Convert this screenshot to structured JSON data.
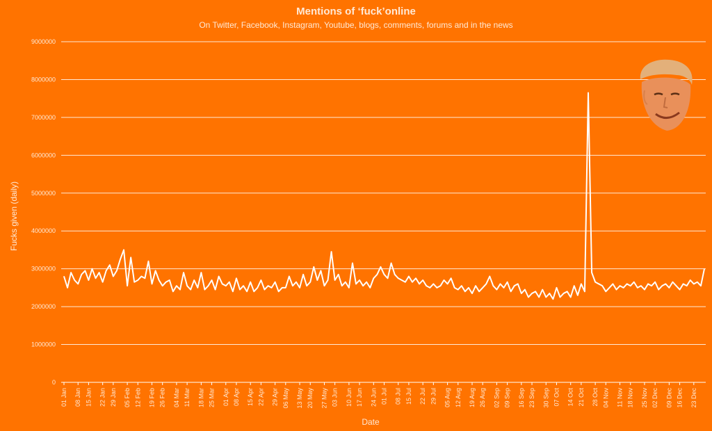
{
  "colors": {
    "background": "#FF7300",
    "line": "#FFFFFF",
    "grid": "#FFFFFF",
    "text": "#FFE9D6"
  },
  "chart_data": {
    "type": "line",
    "title": "Mentions of ‘fuck’online",
    "subtitle": "On Twitter, Facebook, Instagram, Youtube, blogs, comments, forums and in the news",
    "xlabel": "Date",
    "ylabel": "Fucks given (daily)",
    "ylim": [
      0,
      9000000
    ],
    "grid": true,
    "y_ticks": [
      "0",
      "1000000",
      "2000000",
      "3000000",
      "4000000",
      "5000000",
      "6000000",
      "7000000",
      "8000000",
      "9000000"
    ],
    "x_tick_labels": [
      "01 Jan",
      "08 Jan",
      "15 Jan",
      "22 Jan",
      "29 Jan",
      "05 Feb",
      "12 Feb",
      "19 Feb",
      "26 Feb",
      "04 Mar",
      "11 Mar",
      "18 Mar",
      "25 Mar",
      "01 Apr",
      "08 Apr",
      "15 Apr",
      "22 Apr",
      "29 Apr",
      "06 May",
      "13 May",
      "20 May",
      "27 May",
      "03 Jun",
      "10 Jun",
      "17 Jun",
      "24 Jun",
      "01 Jul",
      "08 Jul",
      "15 Jul",
      "22 Jul",
      "29 Jul",
      "05 Aug",
      "12 Aug",
      "19 Aug",
      "26 Aug",
      "02 Sep",
      "09 Sep",
      "16 Sep",
      "23 Sep",
      "30 Sep",
      "07 Oct",
      "14 Oct",
      "21 Oct",
      "28 Oct",
      "04 Nov",
      "11 Nov",
      "18 Nov",
      "25 Nov",
      "02 Dec",
      "09 Dec",
      "16 Dec",
      "23 Dec"
    ],
    "series": [
      {
        "values": [
          2800000,
          2500000,
          2900000,
          2700000,
          2600000,
          2850000,
          2950000,
          2700000,
          3000000,
          2750000,
          2900000,
          2650000,
          2950000,
          3100000,
          2800000,
          2950000,
          3250000,
          3500000,
          2550000,
          3300000,
          2650000,
          2700000,
          2800000,
          2750000,
          3200000,
          2600000,
          2950000,
          2700000,
          2550000,
          2650000,
          2700000,
          2400000,
          2550000,
          2450000,
          2900000,
          2550000,
          2450000,
          2700000,
          2500000,
          2900000,
          2450000,
          2550000,
          2700000,
          2450000,
          2800000,
          2600000,
          2550000,
          2650000,
          2400000,
          2750000,
          2450000,
          2550000,
          2400000,
          2650000,
          2400000,
          2500000,
          2700000,
          2450000,
          2550000,
          2500000,
          2650000,
          2400000,
          2500000,
          2500000,
          2800000,
          2550000,
          2650000,
          2500000,
          2850000,
          2550000,
          2650000,
          3050000,
          2700000,
          2950000,
          2550000,
          2700000,
          3450000,
          2700000,
          2850000,
          2550000,
          2650000,
          2500000,
          3150000,
          2600000,
          2700000,
          2550000,
          2650000,
          2500000,
          2750000,
          2850000,
          3050000,
          2850000,
          2750000,
          3150000,
          2850000,
          2750000,
          2700000,
          2650000,
          2800000,
          2650000,
          2750000,
          2600000,
          2700000,
          2550000,
          2500000,
          2600000,
          2500000,
          2550000,
          2700000,
          2600000,
          2750000,
          2500000,
          2450000,
          2550000,
          2400000,
          2500000,
          2350000,
          2550000,
          2400000,
          2500000,
          2600000,
          2800000,
          2550000,
          2450000,
          2600000,
          2500000,
          2650000,
          2400000,
          2550000,
          2600000,
          2350000,
          2450000,
          2250000,
          2350000,
          2400000,
          2250000,
          2450000,
          2250000,
          2350000,
          2200000,
          2500000,
          2250000,
          2350000,
          2400000,
          2250000,
          2550000,
          2300000,
          2600000,
          2400000,
          7650000,
          2900000,
          2650000,
          2600000,
          2550000,
          2400000,
          2500000,
          2600000,
          2450000,
          2550000,
          2500000,
          2600000,
          2550000,
          2650000,
          2500000,
          2550000,
          2450000,
          2600000,
          2550000,
          2650000,
          2450000,
          2550000,
          2600000,
          2500000,
          2650000,
          2550000,
          2450000,
          2600000,
          2550000,
          2700000,
          2600000,
          2650000,
          2550000,
          3000000
        ]
      }
    ]
  }
}
